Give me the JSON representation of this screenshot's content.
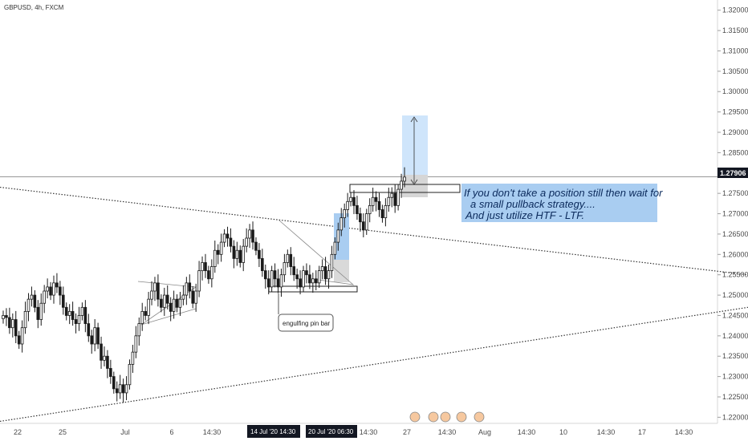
{
  "chart_data": {
    "type": "candlestick",
    "symbol_title": "GBPUSD, 4h, FXCM",
    "y_ticks": [
      "1.32000",
      "1.31500",
      "1.31000",
      "1.30500",
      "1.30000",
      "1.29500",
      "1.29000",
      "1.28500",
      "1.28000",
      "1.27500",
      "1.27000",
      "1.26500",
      "1.26000",
      "1.25500",
      "1.25000",
      "1.24500",
      "1.24000",
      "1.23500",
      "1.23000",
      "1.22500",
      "1.22000"
    ],
    "ylim": [
      1.2185,
      1.3225
    ],
    "x_ticks": [
      {
        "label": "22",
        "x": 22
      },
      {
        "label": "25",
        "x": 78
      },
      {
        "label": "Jul",
        "x": 156
      },
      {
        "label": "6",
        "x": 214
      },
      {
        "label": "14:30",
        "x": 264
      },
      {
        "label": "14:30",
        "x": 459
      },
      {
        "label": "27",
        "x": 507
      },
      {
        "label": "14:30",
        "x": 557
      },
      {
        "label": "Aug",
        "x": 604
      },
      {
        "label": "14:30",
        "x": 656
      },
      {
        "label": "10",
        "x": 702
      },
      {
        "label": "14:30",
        "x": 755
      },
      {
        "label": "17",
        "x": 800
      },
      {
        "label": "14:30",
        "x": 852
      }
    ],
    "time_markers": [
      {
        "label": "14 Jul '20  14:30",
        "x": 341
      },
      {
        "label": "20 Jul '20  06:30",
        "x": 413
      }
    ],
    "last_price": {
      "label": "1.27906",
      "value": 1.27906
    },
    "candle_closes": [
      1.245,
      1.2445,
      1.242,
      1.244,
      1.24,
      1.238,
      1.242,
      1.246,
      1.249,
      1.25,
      1.247,
      1.244,
      1.248,
      1.251,
      1.252,
      1.25,
      1.253,
      1.252,
      1.25,
      1.247,
      1.245,
      1.246,
      1.244,
      1.243,
      1.245,
      1.247,
      1.243,
      1.24,
      1.238,
      1.242,
      1.238,
      1.234,
      1.235,
      1.232,
      1.23,
      1.227,
      1.226,
      1.228,
      1.226,
      1.228,
      1.233,
      1.236,
      1.24,
      1.243,
      1.246,
      1.245,
      1.249,
      1.251,
      1.253,
      1.249,
      1.247,
      1.25,
      1.248,
      1.246,
      1.249,
      1.247,
      1.249,
      1.25,
      1.253,
      1.251,
      1.248,
      1.251,
      1.256,
      1.258,
      1.256,
      1.254,
      1.257,
      1.261,
      1.26,
      1.263,
      1.265,
      1.264,
      1.262,
      1.259,
      1.261,
      1.258,
      1.262,
      1.264,
      1.266,
      1.263,
      1.261,
      1.259,
      1.256,
      1.254,
      1.252,
      1.256,
      1.254,
      1.252,
      1.255,
      1.258,
      1.26,
      1.257,
      1.255,
      1.254,
      1.252,
      1.256,
      1.255,
      1.253,
      1.254,
      1.253,
      1.256,
      1.257,
      1.254,
      1.256,
      1.26,
      1.263,
      1.266,
      1.269,
      1.271,
      1.273,
      1.274,
      1.272,
      1.27,
      1.268,
      1.266,
      1.27,
      1.272,
      1.274,
      1.273,
      1.271,
      1.269,
      1.272,
      1.274,
      1.275,
      1.272,
      1.276,
      1.278,
      1.279
    ],
    "trendlines": [
      {
        "from": [
          0,
          1.2765
        ],
        "to": [
          932,
          1.255
        ],
        "style": "dotted"
      },
      {
        "from": [
          0,
          1.219
        ],
        "to": [
          932,
          1.247
        ],
        "style": "dotted"
      }
    ],
    "annotations": {
      "note_lines": [
        "If you don't take a position  still then wait for",
        "a  small pullback strategy....",
        "And just utilize HTF - LTF."
      ],
      "callout": "engulfing pin bar"
    },
    "legend": "none",
    "grid": false,
    "colors": {
      "candle": "#1a1a1a",
      "note_background": "#a9cdf1",
      "position_target": "#cfe5fb",
      "position_stop": "#d6d6d6",
      "time_marker_background": "#131722",
      "price_label_background": "#131722"
    }
  }
}
